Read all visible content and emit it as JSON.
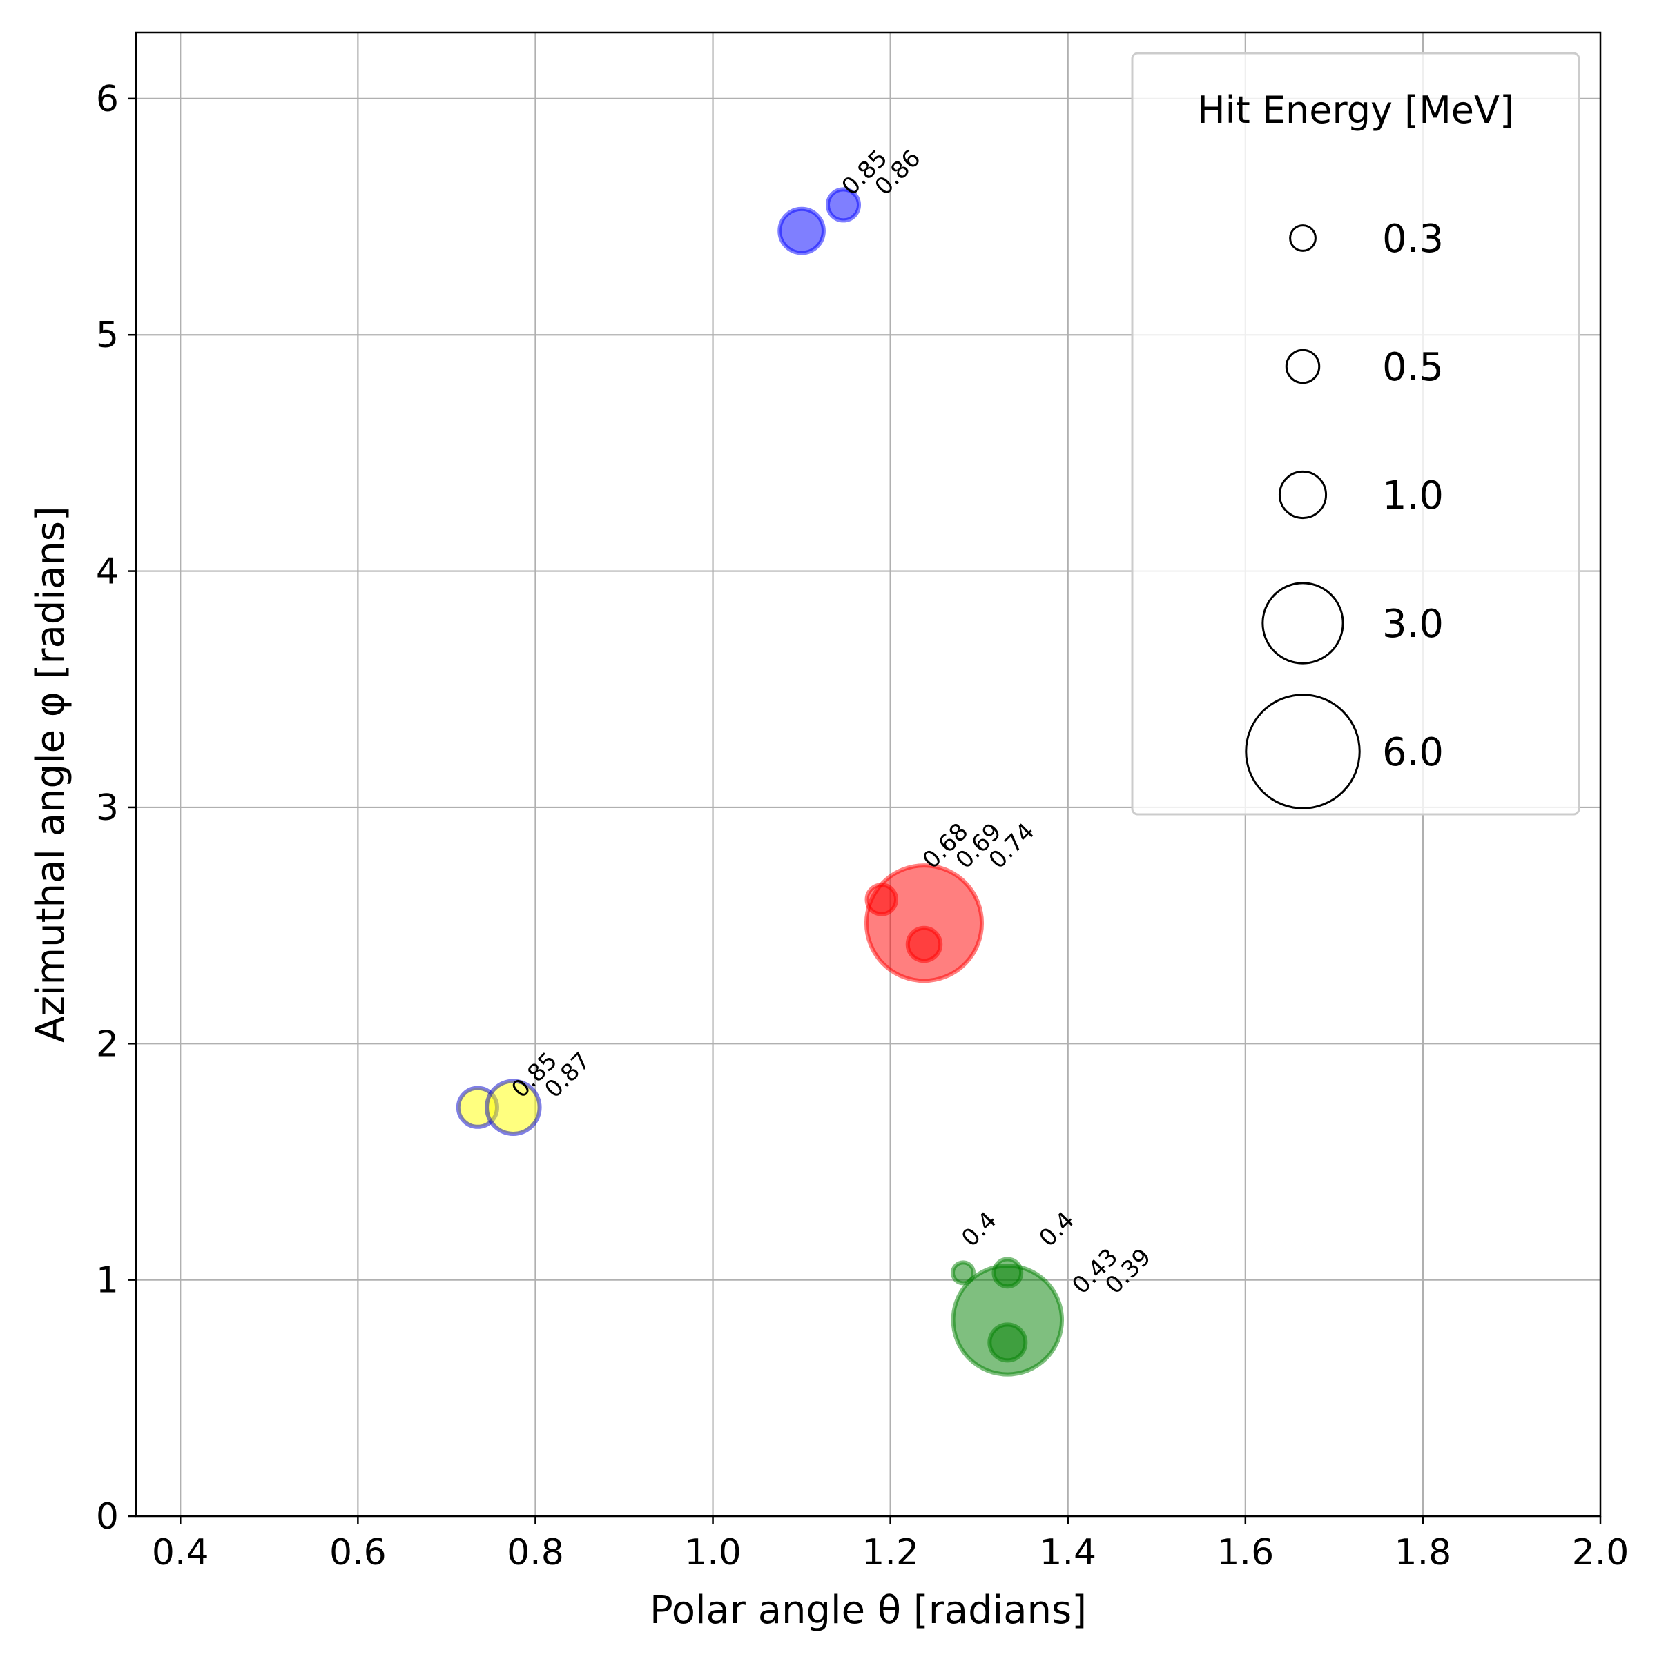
{
  "chart_data": {
    "type": "scatter",
    "title": "",
    "xlabel": "Polar angle θ [radians]",
    "ylabel": "Azimuthal angle φ [radians]",
    "xlim": [
      0.35,
      2.0
    ],
    "ylim": [
      0,
      6.28
    ],
    "xticks": [
      0.4,
      0.6,
      0.8,
      1.0,
      1.2,
      1.4,
      1.6,
      1.8,
      2.0
    ],
    "xtick_labels": [
      "0.4",
      "0.6",
      "0.8",
      "1.0",
      "1.2",
      "1.4",
      "1.6",
      "1.8",
      "2.0"
    ],
    "yticks": [
      0,
      1,
      2,
      3,
      4,
      5,
      6
    ],
    "ytick_labels": [
      "0",
      "1",
      "2",
      "3",
      "4",
      "5",
      "6"
    ],
    "grid": true,
    "legend": {
      "title": "Hit Energy [MeV]",
      "position": "top-right",
      "entries": [
        {
          "label": "0.3",
          "energy": 0.3
        },
        {
          "label": "0.5",
          "energy": 0.5
        },
        {
          "label": "1.0",
          "energy": 1.0
        },
        {
          "label": "3.0",
          "energy": 3.0
        },
        {
          "label": "6.0",
          "energy": 6.0
        }
      ]
    },
    "clusters": [
      {
        "color": "#0000ff",
        "edge": "#0000ff",
        "points": [
          {
            "x": 1.1,
            "y": 5.44,
            "energy": 0.9
          },
          {
            "x": 1.147,
            "y": 5.55,
            "energy": 0.45
          }
        ],
        "labels": [
          {
            "x": 1.147,
            "y": 5.55,
            "text": "0.85"
          },
          {
            "x": 1.147,
            "y": 5.55,
            "text": "0.86"
          }
        ]
      },
      {
        "color": "#ff0000",
        "edge": "#ff0000",
        "points": [
          {
            "x": 1.238,
            "y": 2.51,
            "energy": 6.2
          },
          {
            "x": 1.19,
            "y": 2.61,
            "energy": 0.4
          },
          {
            "x": 1.238,
            "y": 2.42,
            "energy": 0.5
          }
        ],
        "labels": [
          {
            "x": 1.238,
            "y": 2.7,
            "text": "0.68"
          },
          {
            "x": 1.238,
            "y": 2.7,
            "text": "0.69"
          },
          {
            "x": 1.238,
            "y": 2.7,
            "text": "0.74"
          }
        ]
      },
      {
        "color": "#ffff00",
        "edge": "#0000cc",
        "points": [
          {
            "x": 0.735,
            "y": 1.73,
            "energy": 0.7
          },
          {
            "x": 0.775,
            "y": 1.73,
            "energy": 1.3
          }
        ],
        "labels": [
          {
            "x": 0.775,
            "y": 1.73,
            "text": "0.85"
          },
          {
            "x": 0.775,
            "y": 1.73,
            "text": "0.87"
          }
        ]
      },
      {
        "color": "#008000",
        "edge": "#008000",
        "points": [
          {
            "x": 1.332,
            "y": 0.83,
            "energy": 5.5
          },
          {
            "x": 1.282,
            "y": 1.03,
            "energy": 0.2
          },
          {
            "x": 1.332,
            "y": 1.03,
            "energy": 0.35
          },
          {
            "x": 1.332,
            "y": 0.735,
            "energy": 0.6
          }
        ],
        "labels": [
          {
            "x": 1.282,
            "y": 1.1,
            "text": "0.4"
          },
          {
            "x": 1.332,
            "y": 1.1,
            "text": "0.4"
          },
          {
            "x": 1.332,
            "y": 0.9,
            "text": "0.43"
          },
          {
            "x": 1.332,
            "y": 0.9,
            "text": "0.39"
          }
        ]
      }
    ]
  }
}
